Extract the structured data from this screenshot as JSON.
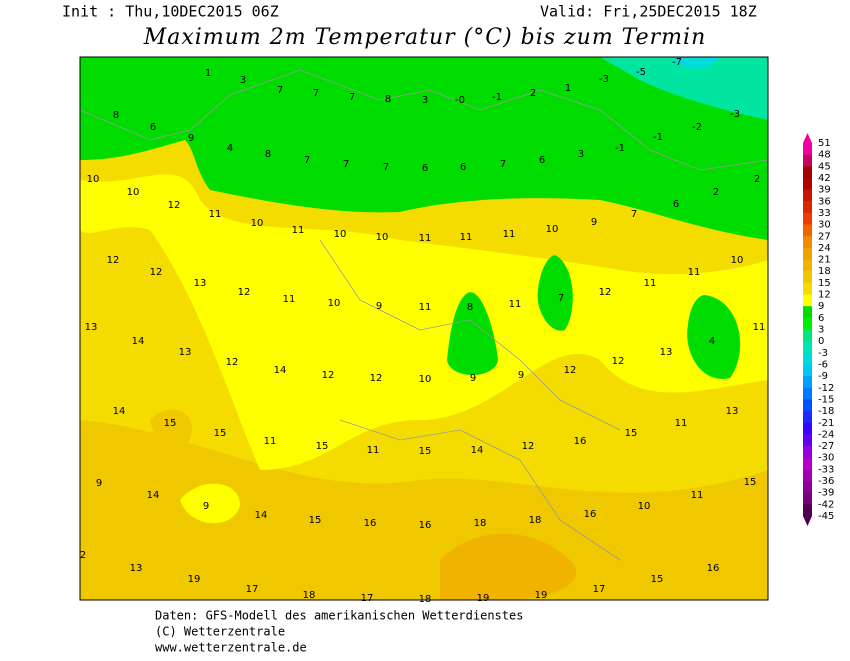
{
  "header": {
    "init": "Init : Thu,10DEC2015 06Z",
    "valid": "Valid: Fri,25DEC2015 18Z",
    "title": "Maximum 2m Temperatur (°C) bis zum Termin"
  },
  "map": {
    "labels": [
      "1",
      "3",
      "7",
      "7",
      "7",
      "8",
      "3",
      "-0",
      "-1",
      "2",
      "1",
      "-3",
      "-5",
      "-7",
      "8",
      "6",
      "9",
      "4",
      "8",
      "7",
      "7",
      "7",
      "6",
      "6",
      "7",
      "6",
      "3",
      "-1",
      "-1",
      "-2",
      "-3",
      "10",
      "10",
      "12",
      "11",
      "10",
      "11",
      "10",
      "10",
      "11",
      "11",
      "11",
      "10",
      "9",
      "7",
      "6",
      "2",
      "2",
      "12",
      "12",
      "13",
      "12",
      "11",
      "10",
      "9",
      "11",
      "8",
      "11",
      "7",
      "12",
      "11",
      "11",
      "10",
      "13",
      "14",
      "13",
      "12",
      "14",
      "12",
      "12",
      "10",
      "9",
      "9",
      "12",
      "12",
      "13",
      "4",
      "11",
      "14",
      "15",
      "15",
      "11",
      "15",
      "11",
      "15",
      "14",
      "12",
      "16",
      "15",
      "11",
      "13",
      "9",
      "14",
      "9",
      "14",
      "15",
      "16",
      "16",
      "18",
      "18",
      "16",
      "10",
      "11",
      "15",
      "2",
      "13",
      "19",
      "17",
      "18",
      "17",
      "18",
      "19",
      "19",
      "17",
      "15",
      "16"
    ]
  },
  "colorbar": {
    "labels": [
      51,
      48,
      45,
      42,
      39,
      36,
      33,
      30,
      27,
      24,
      21,
      18,
      15,
      12,
      9,
      6,
      3,
      0,
      -3,
      -6,
      -9,
      -12,
      -15,
      -18,
      -21,
      -24,
      -27,
      -30,
      -33,
      -36,
      -39,
      -42,
      -45
    ],
    "colors": [
      "#f000a0",
      "#c80060",
      "#a00000",
      "#b40000",
      "#c81400",
      "#dc2800",
      "#f03c00",
      "#f06400",
      "#f08c00",
      "#f0a000",
      "#f0b400",
      "#f0c800",
      "#f5dc00",
      "#ffff00",
      "#00dc00",
      "#00f000",
      "#00e678",
      "#00e6b4",
      "#00dcdc",
      "#00c8f0",
      "#00a0ff",
      "#0078ff",
      "#0050ff",
      "#1e28ff",
      "#3c00ff",
      "#6400f0",
      "#9600dc",
      "#b400c8",
      "#a000b4",
      "#8c0096",
      "#780078",
      "#500050"
    ]
  },
  "footer": {
    "line1": "Daten: GFS-Modell des amerikanischen Wetterdienstes",
    "line2": "(C) Wetterzentrale",
    "line3": "www.wetterzentrale.de"
  }
}
